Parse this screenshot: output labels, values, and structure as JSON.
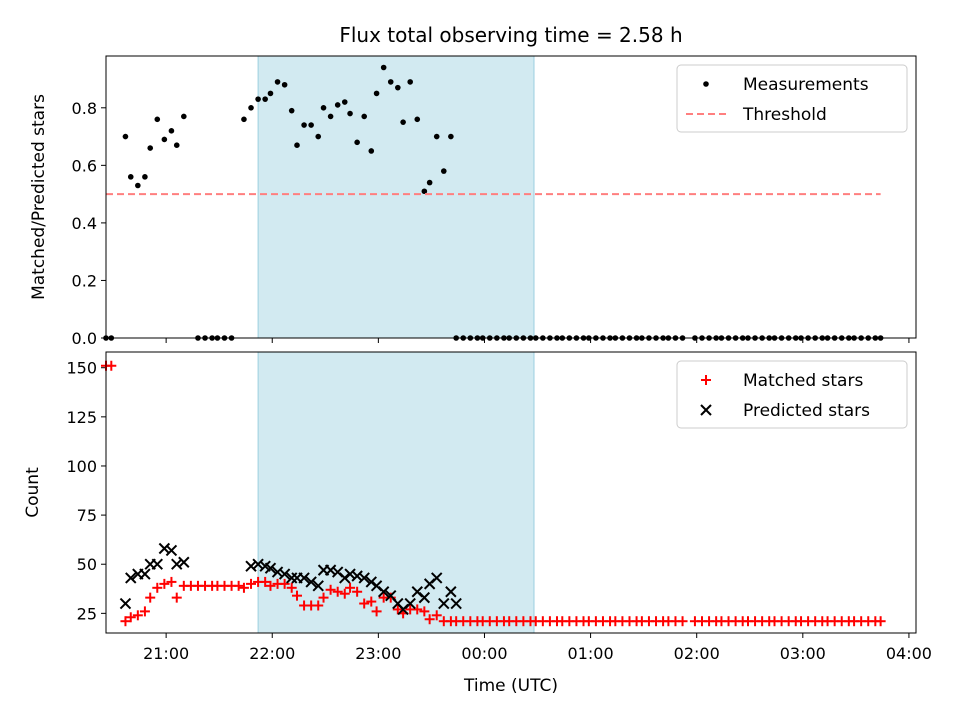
{
  "chart_data": [
    {
      "type": "scatter",
      "title": "Flux total observing time = 2.58 h",
      "xlabel": "",
      "ylabel": "Matched/Predicted stars",
      "xlim": [
        "20:26",
        "04:04"
      ],
      "ylim": [
        0,
        0.98
      ],
      "yticks": [
        0.0,
        0.2,
        0.4,
        0.6,
        0.8
      ],
      "ytick_labels": [
        "0.0",
        "0.2",
        "0.4",
        "0.6",
        "0.8"
      ],
      "shaded_region": {
        "start": "21:52",
        "end": "00:28",
        "color": "#add8e6"
      },
      "legend": {
        "placement": "top-right",
        "entries": [
          "Measurements",
          "Threshold"
        ]
      },
      "series": [
        {
          "name": "Measurements",
          "marker": "dot",
          "color": "#000000",
          "x": [
            "20:26",
            "20:29",
            "20:33",
            "20:37",
            "20:40",
            "20:44",
            "20:48",
            "20:51",
            "20:55",
            "20:59",
            "21:03",
            "21:06",
            "21:10",
            "21:14",
            "21:18",
            "21:22",
            "21:26",
            "21:29",
            "21:33",
            "21:37",
            "21:41",
            "21:44",
            "21:48",
            "21:52",
            "21:56",
            "21:59",
            "22:03",
            "22:07",
            "22:11",
            "22:14",
            "22:18",
            "22:22",
            "22:26",
            "22:29",
            "22:33",
            "22:37",
            "22:41",
            "22:44",
            "22:48",
            "22:52",
            "22:56",
            "22:59",
            "23:03",
            "23:07",
            "23:11",
            "23:14",
            "23:18",
            "23:22",
            "23:26",
            "23:29",
            "23:33",
            "23:37",
            "23:41",
            "23:44",
            "23:48",
            "23:52",
            "23:56",
            "23:59",
            "00:03",
            "00:07",
            "00:11",
            "00:14",
            "00:18",
            "00:22",
            "00:26",
            "00:29",
            "00:33",
            "00:37",
            "00:41",
            "00:44",
            "00:48",
            "00:52",
            "00:56",
            "00:59",
            "01:03",
            "01:07",
            "01:11",
            "01:14",
            "01:18",
            "01:22",
            "01:26",
            "01:29",
            "01:33",
            "01:37",
            "01:41",
            "01:44",
            "01:48",
            "01:52",
            "01:59",
            "02:03",
            "02:07",
            "02:11",
            "02:14",
            "02:18",
            "02:22",
            "02:26",
            "02:29",
            "02:33",
            "02:37",
            "02:41",
            "02:44",
            "02:48",
            "02:52",
            "02:56",
            "02:59",
            "03:03",
            "03:07",
            "03:11",
            "03:14",
            "03:18",
            "03:22",
            "03:26",
            "03:29",
            "03:33",
            "03:37",
            "03:41",
            "03:44"
          ],
          "y": [
            0.0,
            0.0,
            null,
            0.7,
            0.56,
            0.53,
            0.56,
            0.66,
            0.76,
            0.69,
            0.72,
            0.67,
            0.77,
            null,
            0.0,
            0.0,
            0.0,
            0.0,
            0.0,
            0.0,
            null,
            0.76,
            0.8,
            0.83,
            0.83,
            0.85,
            0.89,
            0.88,
            0.79,
            0.67,
            0.74,
            0.74,
            0.7,
            0.8,
            0.77,
            0.81,
            0.82,
            0.78,
            0.68,
            0.77,
            0.65,
            0.85,
            0.94,
            0.89,
            0.87,
            0.75,
            0.89,
            0.76,
            0.51,
            0.54,
            0.7,
            0.58,
            0.7,
            0.0,
            0.0,
            0.0,
            0.0,
            0.0,
            0.0,
            0.0,
            0.0,
            0.0,
            0.0,
            0.0,
            0.0,
            0.0,
            0.0,
            0.0,
            0.0,
            0.0,
            0.0,
            0.0,
            0.0,
            0.0,
            0.0,
            0.0,
            0.0,
            0.0,
            0.0,
            0.0,
            0.0,
            0.0,
            0.0,
            0.0,
            0.0,
            0.0,
            0.0,
            0.0,
            0.0,
            0.0,
            0.0,
            0.0,
            0.0,
            0.0,
            0.0,
            0.0,
            0.0,
            0.0,
            0.0,
            0.0,
            0.0,
            0.0,
            0.0,
            0.0,
            0.0,
            0.0,
            0.0,
            0.0,
            0.0,
            0.0,
            0.0,
            0.0,
            0.0,
            0.0,
            0.0,
            0.0,
            0.0
          ]
        },
        {
          "name": "Threshold",
          "marker": "dashed-line",
          "color": "#ff7f7f",
          "x": [
            "20:26",
            "03:44"
          ],
          "y": [
            0.5,
            0.5
          ]
        }
      ]
    },
    {
      "type": "scatter",
      "title": "",
      "xlabel": "Time (UTC)",
      "ylabel": "Count",
      "xlim": [
        "20:26",
        "04:04"
      ],
      "ylim": [
        15,
        158
      ],
      "yticks": [
        25,
        50,
        75,
        100,
        125,
        150
      ],
      "ytick_labels": [
        "25",
        "50",
        "75",
        "100",
        "125",
        "150"
      ],
      "xticks": [
        "21:00",
        "22:00",
        "23:00",
        "00:00",
        "01:00",
        "02:00",
        "03:00",
        "04:00"
      ],
      "xtick_labels": [
        "21:00",
        "22:00",
        "23:00",
        "00:00",
        "01:00",
        "02:00",
        "03:00",
        "04:00"
      ],
      "shaded_region": {
        "start": "21:52",
        "end": "00:28",
        "color": "#add8e6"
      },
      "legend": {
        "placement": "top-right",
        "entries": [
          "Matched stars",
          "Predicted stars"
        ]
      },
      "series": [
        {
          "name": "Matched stars",
          "marker": "plus",
          "color": "#ff0000",
          "x": [
            "20:26",
            "20:29",
            "20:33",
            "20:37",
            "20:40",
            "20:44",
            "20:48",
            "20:51",
            "20:55",
            "20:59",
            "21:03",
            "21:06",
            "21:10",
            "21:14",
            "21:18",
            "21:22",
            "21:26",
            "21:29",
            "21:33",
            "21:37",
            "21:41",
            "21:44",
            "21:48",
            "21:52",
            "21:56",
            "21:59",
            "22:03",
            "22:07",
            "22:11",
            "22:14",
            "22:18",
            "22:22",
            "22:26",
            "22:29",
            "22:33",
            "22:37",
            "22:41",
            "22:44",
            "22:48",
            "22:52",
            "22:56",
            "22:59",
            "23:03",
            "23:07",
            "23:11",
            "23:14",
            "23:18",
            "23:22",
            "23:26",
            "23:29",
            "23:33",
            "23:37",
            "23:41",
            "23:44",
            "23:48",
            "23:52",
            "23:56",
            "23:59",
            "00:03",
            "00:07",
            "00:11",
            "00:14",
            "00:18",
            "00:22",
            "00:26",
            "00:29",
            "00:33",
            "00:37",
            "00:41",
            "00:44",
            "00:48",
            "00:52",
            "00:56",
            "00:59",
            "01:03",
            "01:07",
            "01:11",
            "01:14",
            "01:18",
            "01:22",
            "01:26",
            "01:29",
            "01:33",
            "01:37",
            "01:41",
            "01:44",
            "01:48",
            "01:52",
            "01:59",
            "02:03",
            "02:07",
            "02:11",
            "02:14",
            "02:18",
            "02:22",
            "02:26",
            "02:29",
            "02:33",
            "02:37",
            "02:41",
            "02:44",
            "02:48",
            "02:52",
            "02:56",
            "02:59",
            "03:03",
            "03:07",
            "03:11",
            "03:14",
            "03:18",
            "03:22",
            "03:26",
            "03:29",
            "03:33",
            "03:37",
            "03:41",
            "03:44"
          ],
          "y": [
            151,
            151,
            null,
            21,
            23,
            24,
            26,
            33,
            38,
            40,
            41,
            33,
            39,
            39,
            39,
            39,
            39,
            39,
            39,
            39,
            39,
            38,
            40,
            41,
            41,
            39,
            40,
            40,
            38,
            34,
            29,
            29,
            29,
            33,
            37,
            36,
            35,
            38,
            36,
            30,
            31,
            26,
            33,
            33,
            27,
            25,
            27,
            27,
            26,
            22,
            24,
            21,
            21,
            21,
            21,
            21,
            21,
            21,
            21,
            21,
            21,
            21,
            21,
            21,
            21,
            21,
            21,
            21,
            21,
            21,
            21,
            21,
            21,
            21,
            21,
            21,
            21,
            21,
            21,
            21,
            21,
            21,
            21,
            21,
            21,
            21,
            21,
            21,
            21,
            21,
            21,
            21,
            21,
            21,
            21,
            21,
            21,
            21,
            21,
            21,
            21,
            21,
            21,
            21,
            21,
            21,
            21,
            21,
            21,
            21,
            21,
            21,
            21,
            21,
            21,
            21,
            21
          ]
        },
        {
          "name": "Predicted stars",
          "marker": "x",
          "color": "#000000",
          "x": [
            "20:37",
            "20:40",
            "20:44",
            "20:48",
            "20:51",
            "20:55",
            "20:59",
            "21:03",
            "21:06",
            "21:10",
            "21:14",
            "21:48",
            "21:52",
            "21:56",
            "21:59",
            "22:03",
            "22:07",
            "22:11",
            "22:14",
            "22:18",
            "22:22",
            "22:26",
            "22:29",
            "22:33",
            "22:37",
            "22:41",
            "22:44",
            "22:48",
            "22:52",
            "22:56",
            "22:59",
            "23:03",
            "23:07",
            "23:11",
            "23:14",
            "23:18",
            "23:22",
            "23:26",
            "23:29",
            "23:33",
            "23:37",
            "23:41",
            "23:44",
            "23:48"
          ],
          "y": [
            30,
            43,
            45,
            45,
            50,
            50,
            58,
            57,
            50,
            51,
            null,
            49,
            50,
            49,
            48,
            46,
            45,
            43,
            43,
            43,
            41,
            39,
            47,
            47,
            46,
            43,
            45,
            44,
            43,
            41,
            39,
            36,
            34,
            30,
            27,
            30,
            36,
            33,
            40,
            43,
            30,
            36,
            30,
            null
          ]
        }
      ]
    }
  ]
}
